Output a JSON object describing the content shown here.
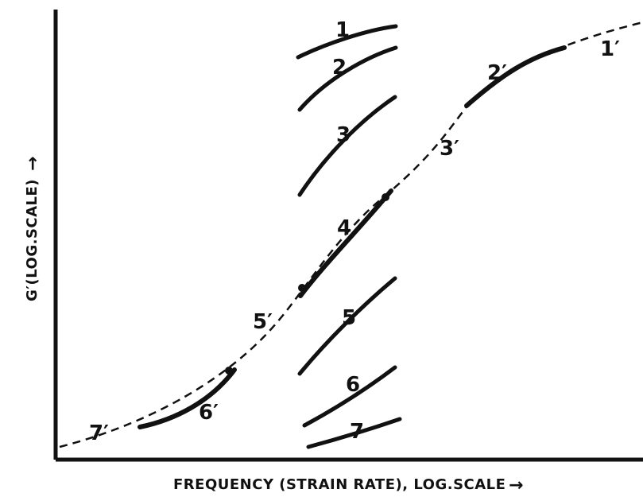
{
  "diagram": {
    "x_axis_label": "FREQUENCY (STRAIN RATE), LOG.SCALE",
    "y_axis_label": "G′(LOG.SCALE)",
    "axis_arrow": "→",
    "measured_curves": [
      {
        "label": "1"
      },
      {
        "label": "2"
      },
      {
        "label": "3"
      },
      {
        "label": "4"
      },
      {
        "label": "5"
      },
      {
        "label": "6"
      },
      {
        "label": "7"
      }
    ],
    "master_curve_segments": [
      {
        "label": "1′"
      },
      {
        "label": "2′"
      },
      {
        "label": "3′"
      },
      {
        "label": "5′"
      },
      {
        "label": "6′"
      },
      {
        "label": "7′"
      }
    ],
    "colors": {
      "ink": "#111111",
      "paper": "#ffffff"
    }
  }
}
